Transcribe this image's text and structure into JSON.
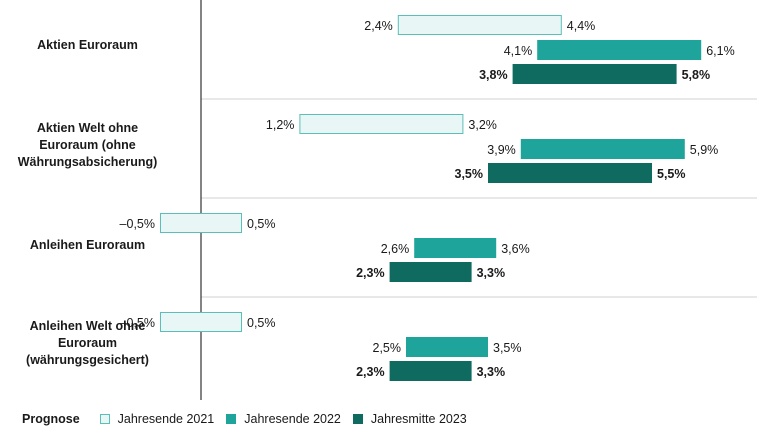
{
  "chart_data": {
    "type": "range-bar",
    "orientation": "horizontal",
    "categories": [
      {
        "label": "Aktien Euroraum"
      },
      {
        "label": "Aktien Welt ohne\nEuroraum (ohne\nWährungsabsicherung)"
      },
      {
        "label": "Anleihen Euroraum"
      },
      {
        "label": "Anleihen Welt ohne\nEuroraum\n(währungsgesichert)"
      }
    ],
    "series": [
      {
        "name": "Jahresende 2021",
        "color": "#e8f7f6",
        "border": "#5cbfb7",
        "bold_labels": false,
        "ranges": [
          [
            2.4,
            4.4
          ],
          [
            1.2,
            3.2
          ],
          [
            -0.5,
            0.5
          ],
          [
            -0.5,
            0.5
          ]
        ],
        "low_labels": [
          "2,4%",
          "1,2%",
          "–0,5%",
          "–0,5%"
        ],
        "high_labels": [
          "4,4%",
          "3,2%",
          "0,5%",
          "0,5%"
        ]
      },
      {
        "name": "Jahresende 2022",
        "color": "#1fa49b",
        "border": "#1fa49b",
        "bold_labels": false,
        "ranges": [
          [
            4.1,
            6.1
          ],
          [
            3.9,
            5.9
          ],
          [
            2.6,
            3.6
          ],
          [
            2.5,
            3.5
          ]
        ],
        "low_labels": [
          "4,1%",
          "3,9%",
          "2,6%",
          "2,5%"
        ],
        "high_labels": [
          "6,1%",
          "5,9%",
          "3,6%",
          "3,5%"
        ]
      },
      {
        "name": "Jahresmitte 2023",
        "color": "#0f6b60",
        "border": "#0f6b60",
        "bold_labels": true,
        "ranges": [
          [
            3.8,
            5.8
          ],
          [
            3.5,
            5.5
          ],
          [
            2.3,
            3.3
          ],
          [
            2.3,
            3.3
          ]
        ],
        "low_labels": [
          "3,8%",
          "3,5%",
          "2,3%",
          "2,3%"
        ],
        "high_labels": [
          "5,8%",
          "5,5%",
          "3,3%",
          "3,3%"
        ]
      }
    ],
    "legend_title": "Prognose",
    "legend_position": "bottom-left",
    "zero_line": true
  }
}
